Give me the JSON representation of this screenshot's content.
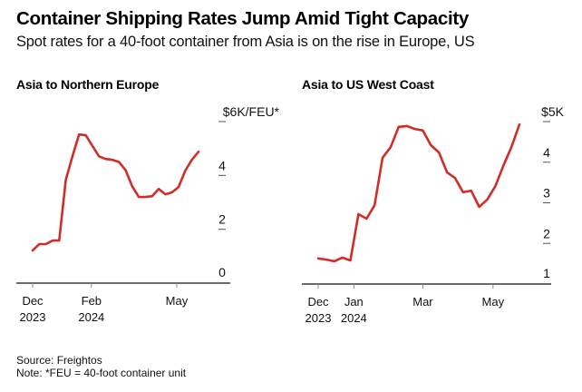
{
  "header": {
    "title": "Container Shipping Rates Jump Amid Tight Capacity",
    "subtitle": "Spot rates for a 40-foot container from Asia is on the rise in Europe, US"
  },
  "footer": {
    "source": "Source: Freightos",
    "note": "Note: *FEU = 40-foot container unit"
  },
  "line_color": "#d12d28",
  "chart_data": [
    {
      "type": "line",
      "title": "Asia to Northern Europe",
      "xlabel": "",
      "ylabel": "$K/FEU",
      "unit_label": "$6K/FEU*",
      "ylim": [
        0,
        6
      ],
      "yticks": [
        {
          "value": 6,
          "label": "$6K/FEU*"
        },
        {
          "value": 4,
          "label": "4"
        },
        {
          "value": 2,
          "label": "2"
        },
        {
          "value": 0,
          "label": "0"
        }
      ],
      "xlim_days": [
        -1,
        205
      ],
      "xticks": [
        {
          "day": 0,
          "label": [
            "Dec",
            "2023"
          ]
        },
        {
          "day": 62,
          "label": [
            "Feb",
            "2024"
          ]
        },
        {
          "day": 152,
          "label": [
            "May",
            ""
          ]
        }
      ],
      "grid": false,
      "series": [
        {
          "name": "Asia to Northern Europe",
          "x_days": [
            0,
            7,
            14,
            21,
            28,
            35,
            42,
            49,
            56,
            63,
            70,
            77,
            84,
            91,
            98,
            105,
            112,
            119,
            126,
            133,
            140,
            147,
            154,
            161,
            168,
            175
          ],
          "values": [
            1.21,
            1.45,
            1.45,
            1.58,
            1.58,
            3.84,
            4.71,
            5.52,
            5.49,
            5.1,
            4.71,
            4.61,
            4.58,
            4.5,
            4.2,
            3.6,
            3.2,
            3.2,
            3.23,
            3.5,
            3.3,
            3.37,
            3.57,
            4.18,
            4.58,
            4.88
          ]
        }
      ]
    },
    {
      "type": "line",
      "title": "Asia to US West Coast",
      "xlabel": "",
      "ylabel": "$K",
      "unit_label": "$5K",
      "ylim": [
        1,
        5
      ],
      "yticks": [
        {
          "value": 5,
          "label": "$5K"
        },
        {
          "value": 4,
          "label": "4"
        },
        {
          "value": 3,
          "label": "3"
        },
        {
          "value": 2,
          "label": "2"
        },
        {
          "value": 1,
          "label": "1"
        }
      ],
      "xlim_days": [
        -13,
        205
      ],
      "xticks": [
        {
          "day": 0,
          "label": [
            "Dec",
            "2023"
          ]
        },
        {
          "day": 31,
          "label": [
            "Jan",
            "2024"
          ]
        },
        {
          "day": 91,
          "label": [
            "Mar",
            ""
          ]
        },
        {
          "day": 152,
          "label": [
            "May",
            ""
          ]
        }
      ],
      "grid": false,
      "series": [
        {
          "name": "Asia to US West Coast",
          "x_days": [
            0,
            7,
            14,
            21,
            28,
            35,
            42,
            49,
            56,
            63,
            70,
            77,
            84,
            91,
            98,
            105,
            112,
            119,
            126,
            133,
            140,
            147,
            154,
            161,
            168,
            175
          ],
          "values": [
            1.63,
            1.6,
            1.56,
            1.65,
            1.58,
            2.72,
            2.61,
            2.94,
            4.11,
            4.37,
            4.87,
            4.89,
            4.82,
            4.78,
            4.42,
            4.24,
            3.75,
            3.61,
            3.26,
            3.3,
            2.9,
            3.08,
            3.41,
            3.91,
            4.37,
            4.93
          ]
        }
      ]
    }
  ]
}
